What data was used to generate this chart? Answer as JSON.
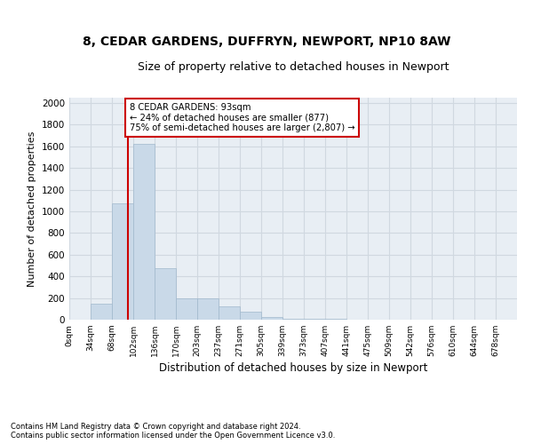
{
  "title_line1": "8, CEDAR GARDENS, DUFFRYN, NEWPORT, NP10 8AW",
  "title_line2": "Size of property relative to detached houses in Newport",
  "xlabel": "Distribution of detached houses by size in Newport",
  "ylabel": "Number of detached properties",
  "bar_labels": [
    "0sqm",
    "34sqm",
    "68sqm",
    "102sqm",
    "136sqm",
    "170sqm",
    "203sqm",
    "237sqm",
    "271sqm",
    "305sqm",
    "339sqm",
    "373sqm",
    "407sqm",
    "441sqm",
    "475sqm",
    "509sqm",
    "542sqm",
    "576sqm",
    "610sqm",
    "644sqm",
    "678sqm"
  ],
  "bar_values": [
    0,
    150,
    1075,
    1625,
    475,
    200,
    200,
    125,
    75,
    25,
    10,
    5,
    5,
    0,
    0,
    0,
    0,
    0,
    0,
    0,
    0
  ],
  "bar_color": "#c9d9e8",
  "bar_edgecolor": "#a0b8cc",
  "grid_color": "#d0d8e0",
  "background_color": "#e8eef4",
  "annotation_line1": "8 CEDAR GARDENS: 93sqm",
  "annotation_line2": "← 24% of detached houses are smaller (877)",
  "annotation_line3": "75% of semi-detached houses are larger (2,807) →",
  "vline_color": "#cc0000",
  "ylim": [
    0,
    2050
  ],
  "yticks": [
    0,
    200,
    400,
    600,
    800,
    1000,
    1200,
    1400,
    1600,
    1800,
    2000
  ],
  "footer_line1": "Contains HM Land Registry data © Crown copyright and database right 2024.",
  "footer_line2": "Contains public sector information licensed under the Open Government Licence v3.0.",
  "bin_width": 34,
  "property_size": 93
}
